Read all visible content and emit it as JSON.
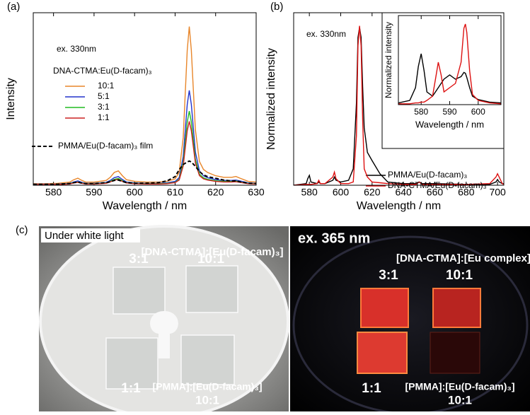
{
  "chart_data": [
    {
      "type": "line",
      "panel": "(a)",
      "annotation": "ex. 330nm",
      "legend_title": "DNA-CTMA:Eu(D-facam)₃",
      "xlabel": "Wavelength / nm",
      "ylabel": "Intensity",
      "xlim": [
        575,
        630
      ],
      "xticks": [
        580,
        590,
        600,
        610,
        620,
        630
      ],
      "ylim": [
        0,
        1
      ],
      "x": [
        575,
        578,
        581,
        584,
        585,
        586,
        587,
        588,
        590,
        593,
        594,
        595,
        596,
        597,
        598,
        600,
        603,
        606,
        608,
        610,
        611,
        612,
        613,
        613.5,
        614,
        615,
        616,
        617,
        618,
        620,
        622,
        624,
        625,
        626,
        628,
        630
      ],
      "series": [
        {
          "name": "10:1",
          "color": "#e8862a",
          "values": [
            0.009,
            0.009,
            0.011,
            0.018,
            0.032,
            0.041,
            0.028,
            0.018,
            0.018,
            0.028,
            0.046,
            0.074,
            0.083,
            0.055,
            0.032,
            0.023,
            0.018,
            0.018,
            0.023,
            0.037,
            0.074,
            0.276,
            0.782,
            0.92,
            0.782,
            0.322,
            0.138,
            0.092,
            0.074,
            0.055,
            0.046,
            0.046,
            0.051,
            0.041,
            0.023,
            0.018
          ]
        },
        {
          "name": "5:1",
          "color": "#2233cc",
          "values": [
            0.006,
            0.006,
            0.007,
            0.011,
            0.019,
            0.025,
            0.017,
            0.011,
            0.011,
            0.017,
            0.028,
            0.044,
            0.05,
            0.033,
            0.019,
            0.014,
            0.011,
            0.011,
            0.014,
            0.022,
            0.044,
            0.165,
            0.468,
            0.55,
            0.468,
            0.193,
            0.083,
            0.055,
            0.044,
            0.033,
            0.028,
            0.028,
            0.03,
            0.025,
            0.014,
            0.011
          ]
        },
        {
          "name": "3:1",
          "color": "#22bb22",
          "values": [
            0.004,
            0.004,
            0.005,
            0.009,
            0.015,
            0.019,
            0.013,
            0.009,
            0.009,
            0.013,
            0.022,
            0.034,
            0.039,
            0.026,
            0.015,
            0.011,
            0.009,
            0.009,
            0.011,
            0.017,
            0.034,
            0.129,
            0.366,
            0.43,
            0.366,
            0.151,
            0.065,
            0.043,
            0.034,
            0.026,
            0.022,
            0.022,
            0.024,
            0.019,
            0.011,
            0.009
          ]
        },
        {
          "name": "1:1",
          "color": "#cc2222",
          "values": [
            0.004,
            0.004,
            0.004,
            0.007,
            0.013,
            0.017,
            0.011,
            0.007,
            0.007,
            0.011,
            0.019,
            0.03,
            0.033,
            0.022,
            0.013,
            0.009,
            0.007,
            0.007,
            0.009,
            0.015,
            0.03,
            0.111,
            0.315,
            0.37,
            0.315,
            0.13,
            0.056,
            0.037,
            0.03,
            0.022,
            0.019,
            0.019,
            0.02,
            0.017,
            0.009,
            0.007
          ]
        },
        {
          "name": "PMMA/Eu(D-facam)₃ film",
          "color": "#000000",
          "dashed": true,
          "values": [
            0.005,
            0.005,
            0.006,
            0.01,
            0.015,
            0.018,
            0.012,
            0.01,
            0.01,
            0.015,
            0.02,
            0.028,
            0.03,
            0.022,
            0.015,
            0.012,
            0.012,
            0.015,
            0.025,
            0.05,
            0.09,
            0.12,
            0.135,
            0.14,
            0.135,
            0.11,
            0.08,
            0.06,
            0.05,
            0.04,
            0.03,
            0.025,
            0.025,
            0.02,
            0.012,
            0.01
          ]
        }
      ]
    },
    {
      "type": "line",
      "panel": "(b)",
      "annotation": "ex. 330nm",
      "xlabel": "Wavelength / nm",
      "ylabel": "Normalized intensity",
      "xlim": [
        570,
        704
      ],
      "xticks": [
        580,
        600,
        620,
        640,
        660,
        680,
        700
      ],
      "ylim": [
        0,
        1.05
      ],
      "x": [
        570,
        578,
        579,
        580,
        581,
        585,
        586,
        587,
        590,
        595,
        596,
        597,
        600,
        605,
        608,
        610,
        611,
        612,
        613,
        614,
        615,
        617,
        620,
        625,
        630,
        640,
        648,
        650,
        652,
        660,
        680,
        695,
        699,
        700,
        701,
        703,
        704
      ],
      "series": [
        {
          "name": "PMMA/Eu(D-facam)₃",
          "color": "#000000",
          "values": [
            0,
            0.01,
            0.04,
            0.06,
            0.02,
            0.01,
            0.02,
            0.01,
            0.01,
            0.03,
            0.05,
            0.03,
            0.02,
            0.03,
            0.1,
            0.5,
            0.9,
            0.96,
            0.9,
            0.6,
            0.35,
            0.2,
            0.15,
            0.07,
            0.02,
            0.01,
            0.01,
            0.02,
            0.01,
            0.01,
            0.005,
            0.005,
            0.02,
            0.035,
            0.02,
            0.01,
            0.01
          ]
        },
        {
          "name": "DNA-CTMA/Eu(D-facam)₃",
          "color": "#dd1111",
          "values": [
            0,
            0.005,
            0.005,
            0.005,
            0.005,
            0.01,
            0.03,
            0.01,
            0.01,
            0.05,
            0.08,
            0.04,
            0.01,
            0.01,
            0.02,
            0.3,
            0.85,
            0.97,
            0.85,
            0.4,
            0.1,
            0.05,
            0.02,
            0.015,
            0.01,
            0.005,
            0.005,
            0.02,
            0.005,
            0.005,
            0.005,
            0.01,
            0.05,
            0.07,
            0.05,
            0.01,
            0.005
          ]
        }
      ]
    },
    {
      "type": "line",
      "xlabel": "Wavelength / nm",
      "ylabel": "Normalized intensity",
      "xlim": [
        572,
        608
      ],
      "xticks": [
        580,
        590,
        600
      ],
      "ylim": [
        0,
        1.05
      ],
      "x": [
        572,
        576,
        578,
        579,
        580,
        581,
        582,
        584,
        585,
        586,
        587,
        588,
        590,
        592,
        594,
        595,
        595.5,
        596,
        597,
        598,
        600,
        604,
        608
      ],
      "series": [
        {
          "color": "#000000",
          "values": [
            0.02,
            0.05,
            0.2,
            0.45,
            0.6,
            0.4,
            0.15,
            0.1,
            0.15,
            0.2,
            0.25,
            0.3,
            0.35,
            0.3,
            0.33,
            0.38,
            0.37,
            0.32,
            0.2,
            0.1,
            0.06,
            0.03,
            0.02
          ]
        },
        {
          "color": "#dd1111",
          "values": [
            0.01,
            0.01,
            0.02,
            0.02,
            0.03,
            0.03,
            0.05,
            0.1,
            0.3,
            0.5,
            0.35,
            0.15,
            0.2,
            0.25,
            0.5,
            0.9,
            0.95,
            0.85,
            0.4,
            0.12,
            0.05,
            0.02,
            0.01
          ]
        }
      ]
    }
  ],
  "photos": {
    "panel": "(c)",
    "left": {
      "caption": "Under white light",
      "header": "[DNA-CTMA]:[Eu(D-facam)₃]",
      "labels": [
        "3:1",
        "10:1",
        "1:1"
      ],
      "footer": "[PMMA]:[Eu(D-facam)₃]",
      "footer_ratio": "10:1"
    },
    "right": {
      "caption": "ex. 365 nm",
      "header": "[DNA-CTMA]:[Eu complex]",
      "labels": [
        "3:1",
        "10:1",
        "1:1"
      ],
      "footer": "[PMMA]:[Eu(D-facam)₃]",
      "footer_ratio": "10:1"
    }
  }
}
